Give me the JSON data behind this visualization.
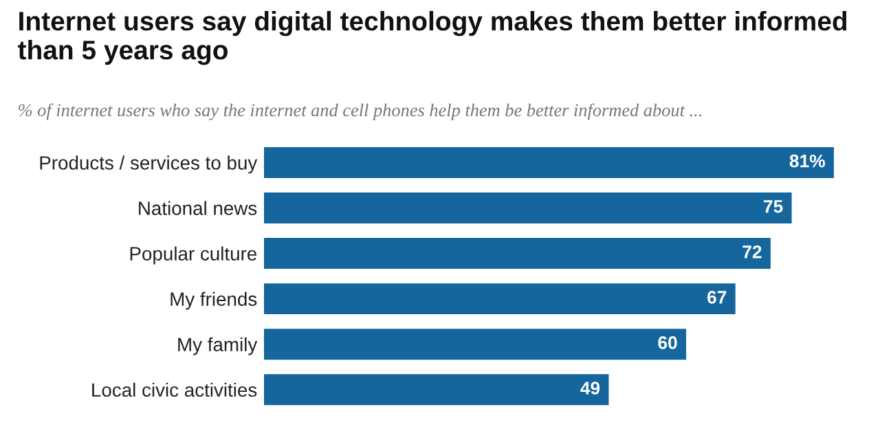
{
  "chart_data": {
    "type": "bar",
    "orientation": "horizontal",
    "title": "Internet users say digital technology makes them better informed than 5 years ago",
    "subtitle": "% of internet users who say the internet and cell phones help them be better informed about ...",
    "categories": [
      "Products / services to buy",
      "National news",
      "Popular culture",
      "My friends",
      "My family",
      "Local civic activities"
    ],
    "values": [
      81,
      75,
      72,
      67,
      60,
      49
    ],
    "value_labels": [
      "81%",
      "75",
      "72",
      "67",
      "60",
      "49"
    ],
    "color": "#15669d",
    "grid": false,
    "legend": false,
    "tick_labels": "y"
  }
}
